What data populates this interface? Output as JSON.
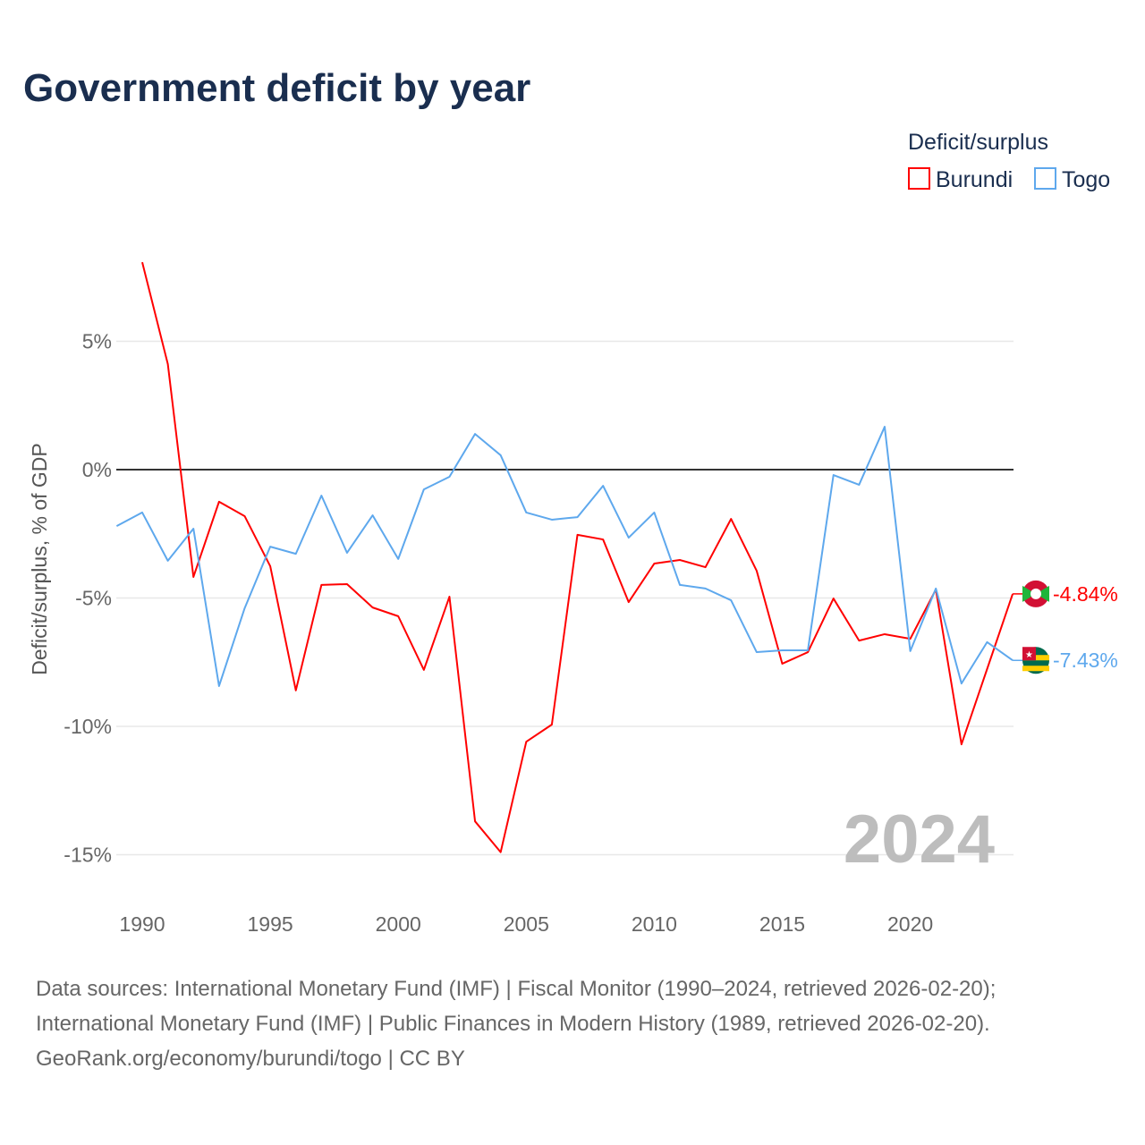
{
  "chart_data": {
    "type": "line",
    "title": "Government deficit by year",
    "ylabel": "Deficit/surplus, % of GDP",
    "xlabel": "",
    "ylim": [
      -16.5,
      8.5
    ],
    "xlim": [
      1989,
      2024
    ],
    "yticks": [
      {
        "v": 5,
        "label": "5%"
      },
      {
        "v": 0,
        "label": "0%"
      },
      {
        "v": -5,
        "label": "-5%"
      },
      {
        "v": -10,
        "label": "-10%"
      },
      {
        "v": -15,
        "label": "-15%"
      }
    ],
    "xticks": [
      1990,
      1995,
      2000,
      2005,
      2010,
      2015,
      2020
    ],
    "legend_title": "Deficit/surplus",
    "legend_position": "top-right",
    "year_watermark": "2024",
    "series": [
      {
        "name": "Burundi",
        "color": "#ff0000",
        "end_label": "-4.84%",
        "start_year": 1990,
        "values": [
          8.08,
          4.11,
          -4.18,
          -1.25,
          -1.81,
          -3.76,
          -8.6,
          -4.49,
          -4.46,
          -5.37,
          -5.71,
          -7.8,
          -4.95,
          -13.7,
          -14.9,
          -10.6,
          -9.93,
          -2.54,
          -2.72,
          -5.16,
          -3.66,
          -3.52,
          -3.8,
          -1.92,
          -3.94,
          -7.56,
          -7.11,
          -5.02,
          -6.66,
          -6.41,
          -6.59,
          -4.67,
          -10.7,
          -7.77,
          -4.84
        ]
      },
      {
        "name": "Togo",
        "color": "#5ea8ed",
        "end_label": "-7.43%",
        "start_year": 1989,
        "values": [
          -2.2,
          -1.67,
          -3.55,
          -2.3,
          -8.43,
          -5.4,
          -3.0,
          -3.28,
          -1.01,
          -3.24,
          -1.78,
          -3.48,
          -0.77,
          -0.28,
          1.39,
          0.56,
          -1.67,
          -1.95,
          -1.85,
          -0.63,
          -2.65,
          -1.67,
          -4.49,
          -4.63,
          -5.09,
          -7.11,
          -7.04,
          -7.04,
          -0.21,
          -0.59,
          1.67,
          -7.07,
          -4.63,
          -8.33,
          -6.72,
          -7.43
        ]
      }
    ]
  },
  "footer": {
    "line1": "Data sources: International Monetary Fund (IMF) | Fiscal Monitor (1990–2024, retrieved 2026-02-20);",
    "line2": "International Monetary Fund (IMF) | Public Finances in Modern History (1989, retrieved 2026-02-20).",
    "line3": "GeoRank.org/economy/burundi/togo | CC BY"
  }
}
